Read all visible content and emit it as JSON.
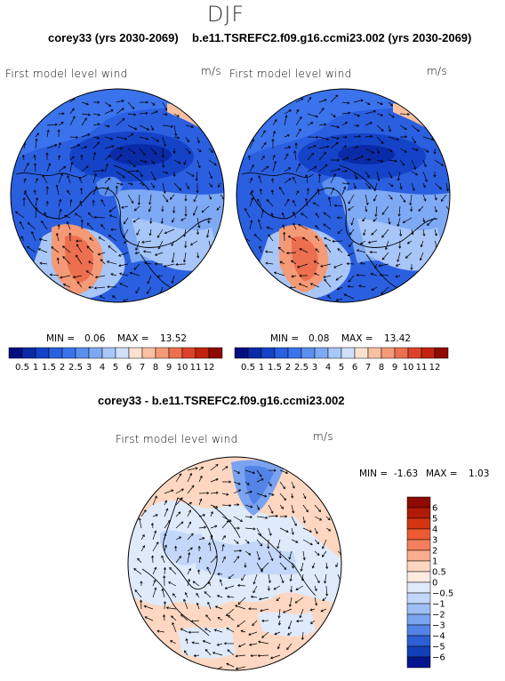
{
  "title": "DJF",
  "header_left": "corey33 (yrs 2030-2069)",
  "header_right": "b.e11.TSREFC2.f09.g16.ccmi23.002 (yrs 2030-2069)",
  "header_diff": "corey33 - b.e11.TSREFC2.f09.g16.ccmi23.002",
  "panels": [
    {
      "label": "First model level wind",
      "units": "m/s",
      "min_label": "MIN =",
      "min": "0.06",
      "max_label": "MAX =",
      "max": "13.52"
    },
    {
      "label": "First model level wind",
      "units": "m/s",
      "min_label": "MIN =",
      "min": "0.08",
      "max_label": "MAX =",
      "max": "13.42"
    },
    {
      "label": "First model level wind",
      "units": "m/s",
      "min_label": "MIN =",
      "min": "-1.63",
      "max_label": "MAX =",
      "max": "1.03"
    }
  ],
  "colorbar_top": {
    "levels": [
      "0.5",
      "1",
      "1.5",
      "2",
      "2.5",
      "3",
      "4",
      "5",
      "6",
      "7",
      "8",
      "9",
      "10",
      "11",
      "12"
    ],
    "colors": [
      "#000f80",
      "#0a2ba8",
      "#1543c8",
      "#2a5fe0",
      "#3b73ec",
      "#5b8ff0",
      "#7ea9f4",
      "#a8c6f8",
      "#cfe0fb",
      "#fce1d0",
      "#f9c0a2",
      "#f49a77",
      "#ec6f4f",
      "#dd432c",
      "#c22410",
      "#8e0a02"
    ]
  },
  "colorbar_diff": {
    "levels": [
      "6",
      "5",
      "4",
      "3",
      "2",
      "1",
      "0.5",
      "0",
      "−0.5",
      "−1",
      "−2",
      "−3",
      "−4",
      "−5",
      "−6"
    ],
    "colors": [
      "#8e0a02",
      "#b11a05",
      "#d53512",
      "#ec5a32",
      "#f47f5c",
      "#f9ad8d",
      "#fdd7c1",
      "#fdebe0",
      "#dfeafb",
      "#c3d7fa",
      "#9ebff6",
      "#7aa3f0",
      "#5383e6",
      "#2c5fd6",
      "#1240b8",
      "#03168e"
    ]
  }
}
